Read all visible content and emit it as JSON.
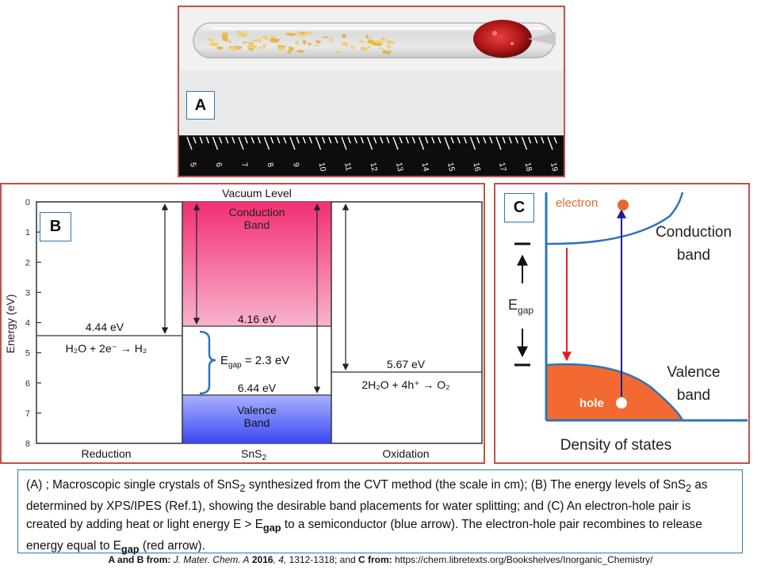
{
  "panel_a": {
    "label": "A",
    "ruler_ticks": [
      "5",
      "6",
      "7",
      "8",
      "9",
      "10",
      "11",
      "12",
      "13",
      "14",
      "15",
      "16",
      "17",
      "18",
      "19"
    ]
  },
  "panel_b": {
    "label": "B",
    "ylabel": "Energy (eV)",
    "yticks": [
      "0",
      "1",
      "2",
      "3",
      "4",
      "5",
      "6",
      "7",
      "8"
    ],
    "vacuum_level": "Vacuum Level",
    "conduction_band": [
      "Conduction",
      "Band"
    ],
    "valence_band": [
      "Valence",
      "Band"
    ],
    "cb_edge": "4.16 eV",
    "vb_edge": "6.44 eV",
    "reduction_level": "4.44 eV",
    "reduction_reaction": "H₂O + 2e⁻ → H₂",
    "oxidation_level": "5.67 eV",
    "oxidation_reaction": "2H₂O + 4h⁺ → O₂",
    "egap_symbol": "E",
    "egap_sub": "gap",
    "egap_value": " = 2.3 eV",
    "xlabels": [
      "Reduction",
      "SnS",
      "Oxidation"
    ],
    "xlabel_sub": "2",
    "colors": {
      "conduction": "#e8437f",
      "valence": "#4f5df0",
      "brace": "#2e75b6"
    }
  },
  "panel_c": {
    "label": "C",
    "electron": "electron",
    "hole": "hole",
    "conduction": [
      "Conduction",
      "band"
    ],
    "valence": [
      "Valence",
      "band"
    ],
    "egap_symbol": "E",
    "egap_sub": "gap",
    "xlabel": "Density of states",
    "colors": {
      "electron": "#e3692e",
      "valence_fill": "#f26a32",
      "axis": "#2e75b6",
      "excite": "#1f1f8f",
      "recombine": "#e02020"
    }
  },
  "caption": {
    "p1": "(A) ; Macroscopic single crystals of SnS",
    "sub1": "2",
    "p2": " synthesized from the CVT method (the scale in cm); (B) The energy levels of SnS",
    "sub2": "2",
    "p3": " as determined by XPS/IPES (Ref.1), showing the desirable band placements for water splitting; and (C) An electron-hole pair is created by adding heat or light energy E > E",
    "sub3": "gap",
    "p4": " to a semiconductor (blue arrow). The electron-hole pair recombines to release energy equal to E",
    "sub4": "gap",
    "p5": " (red arrow)."
  },
  "credit": {
    "part1": "A and B from: ",
    "journal": "J. Mater. Chem. A",
    "year": " 2016",
    "vol": ", 4,",
    "pages": " 1312-1318; and ",
    "c_label": "C from: ",
    "url": "https://chem.libretexts.org/Bookshelves/Inorganic_Chemistry/"
  }
}
